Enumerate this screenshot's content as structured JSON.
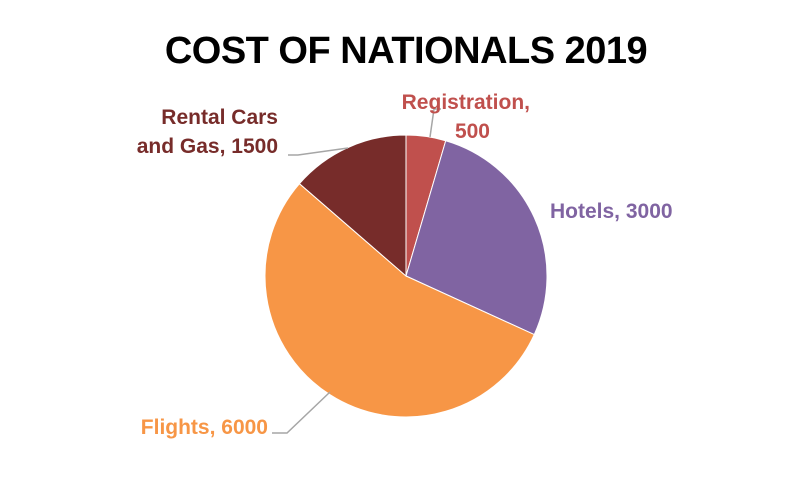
{
  "chart_data": {
    "type": "pie",
    "title": "COST OF NATIONALS 2019",
    "categories": [
      "Registration",
      "Hotels",
      "Flights",
      "Rental Cars and Gas"
    ],
    "values": [
      500,
      3000,
      6000,
      1500
    ],
    "colors": [
      "#c0504d",
      "#8064a2",
      "#f79646",
      "#772c2a"
    ],
    "data_labels": [
      {
        "line1": "Registration,",
        "line2": "500"
      },
      {
        "line1": "Hotels, 3000",
        "line2": ""
      },
      {
        "line1": "Flights, 6000",
        "line2": ""
      },
      {
        "line1": "Rental Cars",
        "line2": "and Gas, 1500"
      }
    ],
    "leader_line_color": "#a6a6a6",
    "legend": "none"
  }
}
